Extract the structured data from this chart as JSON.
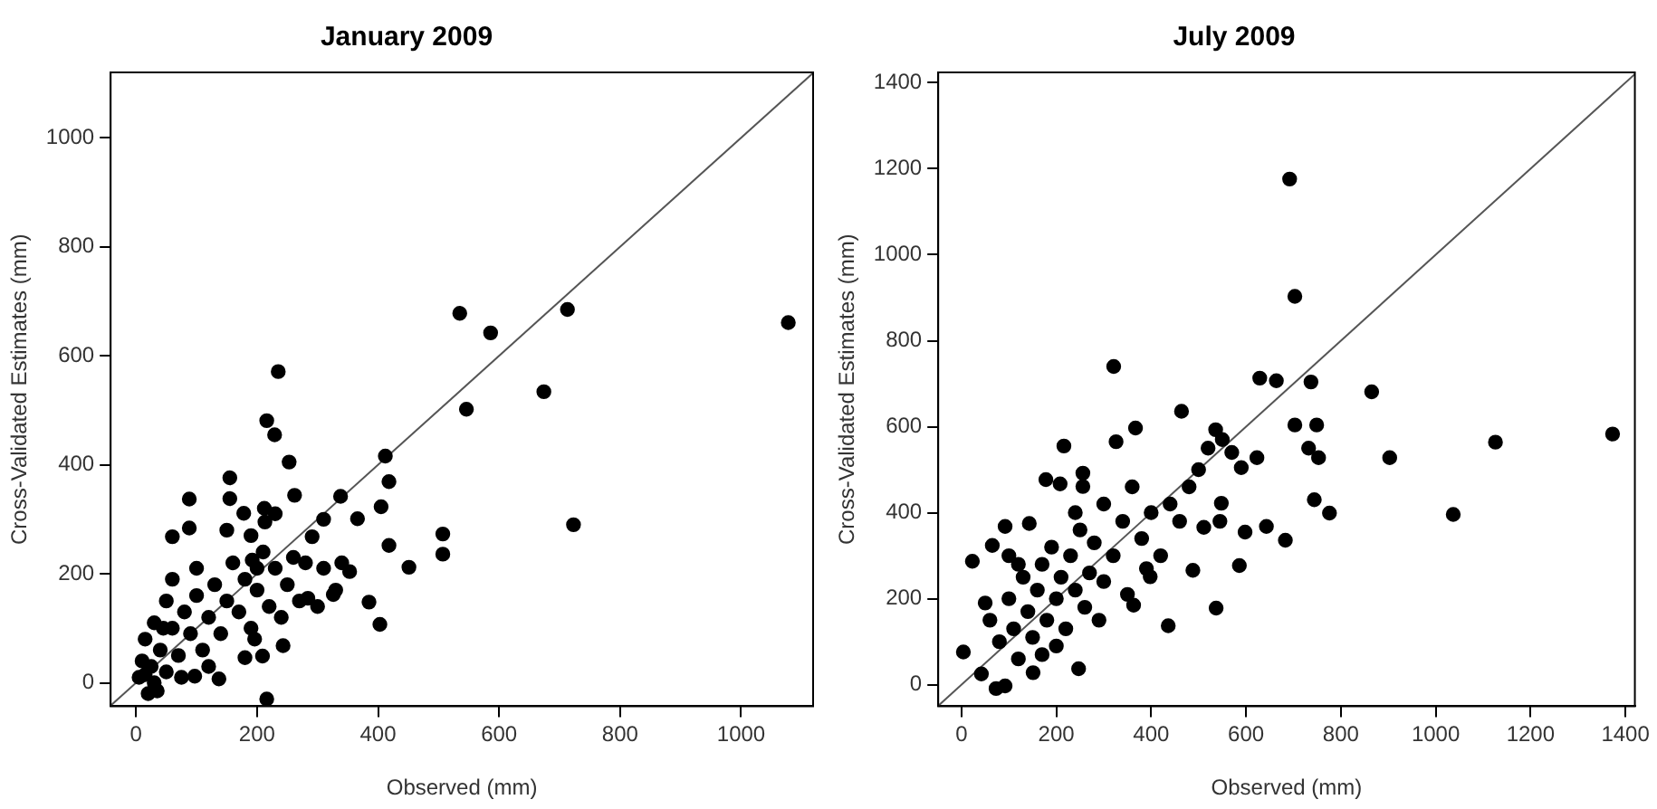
{
  "chart_data": [
    {
      "type": "scatter",
      "title": "January 2009",
      "xlabel": "Observed (mm)",
      "ylabel": "Cross-Validated Estimates (mm)",
      "xlim": [
        -42,
        1119
      ],
      "ylim": [
        -43,
        1120
      ],
      "xticks": [
        0,
        200,
        400,
        600,
        800,
        1000
      ],
      "yticks": [
        0,
        200,
        400,
        600,
        800,
        1000
      ],
      "grid": false,
      "legend": false,
      "series": [
        {
          "marker": "circle",
          "color": "#000000",
          "x": [
            535,
            586,
            713,
            1078,
            674,
            546,
            723,
            235,
            216,
            229,
            253,
            412,
            418,
            405,
            418,
            451,
            507,
            507,
            403,
            385,
            366,
            338,
            310,
            291,
            262,
            243,
            216,
            155,
            155,
            88,
            88,
            60,
            137,
            97,
            196,
            209,
            180,
            353,
            326,
            284,
            213,
            212,
            178,
            192,
            5,
            10,
            15,
            20,
            30,
            30,
            40,
            50,
            50,
            60,
            60,
            70,
            80,
            90,
            100,
            100,
            110,
            120,
            130,
            140,
            150,
            160,
            170,
            180,
            190,
            200,
            210,
            220,
            230,
            240,
            250,
            260,
            270,
            280,
            300,
            310,
            330,
            340,
            25,
            35,
            45,
            75,
            15,
            120,
            150,
            190,
            200,
            230
          ],
          "values": [
            678,
            642,
            685,
            661,
            534,
            502,
            290,
            571,
            481,
            455,
            405,
            416,
            369,
            323,
            252,
            212,
            273,
            236,
            107,
            148,
            301,
            342,
            300,
            268,
            344,
            68,
            -30,
            338,
            376,
            337,
            284,
            268,
            7,
            12,
            80,
            49,
            46,
            204,
            162,
            155,
            295,
            320,
            311,
            225,
            10,
            40,
            80,
            -20,
            0,
            110,
            60,
            20,
            150,
            100,
            190,
            50,
            130,
            90,
            160,
            210,
            60,
            120,
            180,
            90,
            150,
            220,
            130,
            190,
            100,
            170,
            240,
            140,
            210,
            120,
            180,
            230,
            150,
            220,
            140,
            210,
            170,
            220,
            30,
            -15,
            100,
            10,
            15,
            30,
            280,
            270,
            210,
            310
          ]
        },
        {
          "type": "line",
          "marker": "none",
          "color": "#555555",
          "x": [
            -42,
            1119
          ],
          "values": [
            -42,
            1119
          ]
        }
      ]
    },
    {
      "type": "scatter",
      "title": "July 2009",
      "xlabel": "Observed (mm)",
      "ylabel": "Cross-Validated Estimates (mm)",
      "xlim": [
        -49,
        1420
      ],
      "ylim": [
        -50,
        1424
      ],
      "xticks": [
        0,
        200,
        400,
        600,
        800,
        1000,
        1200,
        1400
      ],
      "yticks": [
        0,
        200,
        400,
        600,
        800,
        1000,
        1200,
        1400
      ],
      "grid": false,
      "legend": false,
      "series": [
        {
          "marker": "circle",
          "color": "#000000",
          "x": [
            692,
            703,
            321,
            629,
            664,
            737,
            865,
            703,
            749,
            1373,
            1126,
            903,
            753,
            732,
            1037,
            776,
            744,
            683,
            643,
            598,
            586,
            537,
            436,
            247,
            464,
            367,
            216,
            326,
            536,
            623,
            590,
            548,
            545,
            511,
            488,
            398,
            178,
            208,
            143,
            92,
            65,
            23,
            4,
            42,
            73,
            92,
            151,
            256,
            256,
            363,
            60,
            80,
            100,
            110,
            120,
            130,
            140,
            150,
            160,
            170,
            180,
            190,
            200,
            210,
            220,
            230,
            240,
            250,
            260,
            270,
            280,
            290,
            300,
            320,
            340,
            350,
            360,
            380,
            400,
            420,
            440,
            460,
            480,
            500,
            520,
            550,
            570,
            390,
            300,
            240,
            120,
            50,
            200,
            100,
            170
          ],
          "values": [
            1176,
            903,
            740,
            713,
            707,
            704,
            681,
            604,
            604,
            583,
            564,
            528,
            528,
            550,
            396,
            399,
            430,
            336,
            368,
            355,
            277,
            178,
            137,
            37,
            636,
            597,
            555,
            565,
            593,
            528,
            505,
            422,
            380,
            366,
            266,
            251,
            477,
            467,
            375,
            368,
            324,
            287,
            76,
            25,
            -9,
            -3,
            28,
            492,
            461,
            185,
            150,
            100,
            200,
            130,
            60,
            250,
            170,
            110,
            220,
            280,
            150,
            320,
            200,
            250,
            130,
            300,
            220,
            360,
            180,
            260,
            330,
            150,
            240,
            300,
            380,
            210,
            460,
            340,
            400,
            300,
            420,
            380,
            460,
            500,
            550,
            570,
            540,
            270,
            420,
            400,
            280,
            190,
            90,
            300,
            70
          ]
        },
        {
          "type": "line",
          "marker": "none",
          "color": "#555555",
          "x": [
            -49,
            1420
          ],
          "values": [
            -49,
            1420
          ]
        }
      ]
    }
  ]
}
